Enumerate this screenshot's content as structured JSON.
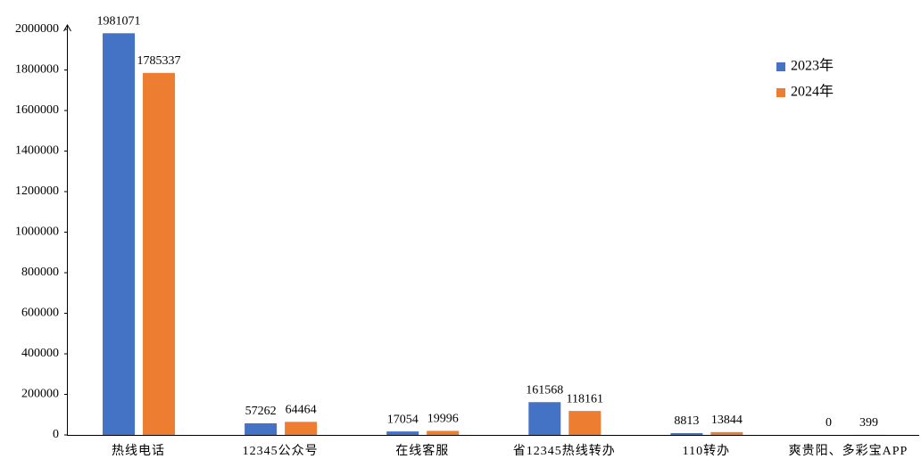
{
  "chart_data": {
    "type": "bar",
    "categories": [
      "热线电话",
      "12345公众号",
      "在线客服",
      "省12345热线转办",
      "110转办",
      "爽贵阳、多彩宝APP"
    ],
    "series": [
      {
        "name": "2023年",
        "color": "#4472c4",
        "values": [
          1981071,
          57262,
          17054,
          161568,
          8813,
          0
        ]
      },
      {
        "name": "2024年",
        "color": "#ed7d31",
        "values": [
          1785337,
          64464,
          19996,
          118161,
          13844,
          399
        ]
      }
    ],
    "ylim": [
      0,
      2000000
    ],
    "yticks": [
      0,
      200000,
      400000,
      600000,
      800000,
      1000000,
      1200000,
      1400000,
      1600000,
      1800000,
      2000000
    ],
    "legend": "upper right"
  }
}
